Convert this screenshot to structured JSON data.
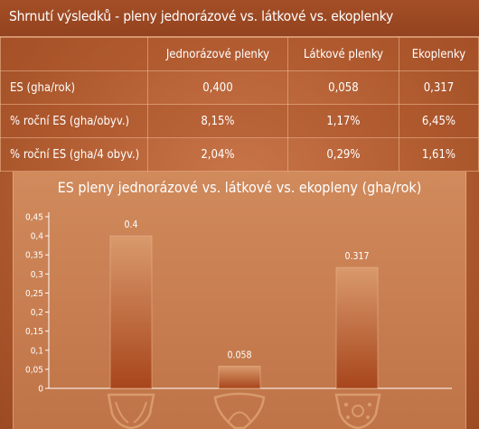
{
  "header": {
    "title": "Shrnutí výsledků - pleny jednorázové vs. látkové vs. ekoplenky"
  },
  "table": {
    "columns": [
      "",
      "Jednorázové plenky",
      "Látkové plenky",
      "Ekoplenky"
    ],
    "rows": [
      {
        "label": "ES (gha/rok)",
        "values": [
          "0,400",
          "0,058",
          "0,317"
        ]
      },
      {
        "label": "% roční ES (gha/obyv.)",
        "values": [
          "8,15%",
          "1,17%",
          "6,45%"
        ]
      },
      {
        "label": "% roční ES (gha/4 obyv.)",
        "values": [
          "2,04%",
          "0,29%",
          "1,61%"
        ]
      }
    ]
  },
  "icons": [
    "disposable-diaper-icon",
    "cloth-diaper-icon",
    "eco-diaper-icon"
  ],
  "colors": {
    "bar_top": "#d99a6c",
    "bar_bottom": "#a8451c",
    "axis": "#ffffff"
  },
  "chart_data": {
    "type": "bar",
    "title": "ES pleny jednorázové vs. látkové vs. ekopleny (gha/rok)",
    "categories": [
      "Jednorázové plenky",
      "Látkové plenky",
      "Ekoplenky"
    ],
    "values": [
      0.4,
      0.058,
      0.317
    ],
    "data_labels": [
      "0.4",
      "0.058",
      "0.317"
    ],
    "yticks": [
      "0",
      "0,05",
      "0,1",
      "0,15",
      "0,2",
      "0,25",
      "0,3",
      "0,35",
      "0,4",
      "0,45"
    ],
    "ylim": [
      0,
      0.45
    ],
    "grid": false
  }
}
